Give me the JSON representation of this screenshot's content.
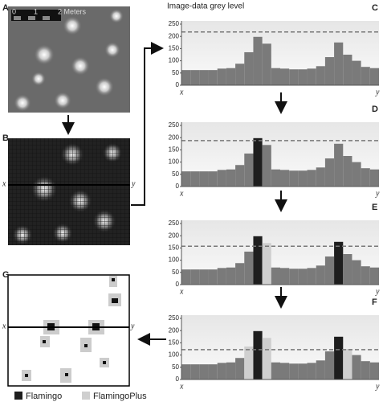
{
  "panels": {
    "a": {
      "label": "A",
      "scale_labels": [
        "0",
        "1",
        "2 Meters"
      ]
    },
    "b": {
      "label": "B",
      "x_label": "x",
      "y_label": "y"
    },
    "g": {
      "label": "G",
      "x_label": "x",
      "y_label": "y"
    }
  },
  "chart_data": [
    {
      "type": "bar",
      "title": "Image-data grey level",
      "panel_label": "C",
      "x_label": "x",
      "y_label": "y",
      "values": [
        62,
        62,
        62,
        62,
        68,
        70,
        88,
        135,
        198,
        170,
        70,
        68,
        65,
        65,
        68,
        78,
        115,
        175,
        125,
        100,
        75,
        70
      ],
      "bar_colors": [
        "#7a7a7a",
        "#7a7a7a",
        "#7a7a7a",
        "#7a7a7a",
        "#7a7a7a",
        "#7a7a7a",
        "#7a7a7a",
        "#7a7a7a",
        "#7a7a7a",
        "#7a7a7a",
        "#7a7a7a",
        "#7a7a7a",
        "#7a7a7a",
        "#7a7a7a",
        "#7a7a7a",
        "#7a7a7a",
        "#7a7a7a",
        "#7a7a7a",
        "#7a7a7a",
        "#7a7a7a",
        "#7a7a7a",
        "#7a7a7a"
      ],
      "threshold": 218,
      "ylim": [
        0,
        250
      ],
      "yticks": [
        0,
        50,
        100,
        150,
        200,
        250
      ]
    },
    {
      "type": "bar",
      "panel_label": "D",
      "x_label": "x",
      "y_label": "y",
      "values": [
        62,
        62,
        62,
        62,
        68,
        70,
        88,
        135,
        198,
        170,
        70,
        68,
        65,
        65,
        68,
        78,
        115,
        175,
        125,
        100,
        75,
        70
      ],
      "bar_colors": [
        "#7a7a7a",
        "#7a7a7a",
        "#7a7a7a",
        "#7a7a7a",
        "#7a7a7a",
        "#7a7a7a",
        "#7a7a7a",
        "#7a7a7a",
        "#1e1e1e",
        "#7a7a7a",
        "#7a7a7a",
        "#7a7a7a",
        "#7a7a7a",
        "#7a7a7a",
        "#7a7a7a",
        "#7a7a7a",
        "#7a7a7a",
        "#7a7a7a",
        "#7a7a7a",
        "#7a7a7a",
        "#7a7a7a",
        "#7a7a7a"
      ],
      "threshold": 188,
      "ylim": [
        0,
        250
      ],
      "yticks": [
        0,
        50,
        100,
        150,
        200,
        250
      ]
    },
    {
      "type": "bar",
      "panel_label": "E",
      "x_label": "x",
      "y_label": "y",
      "values": [
        62,
        62,
        62,
        62,
        68,
        70,
        88,
        135,
        198,
        170,
        70,
        68,
        65,
        65,
        68,
        78,
        115,
        175,
        125,
        100,
        75,
        70
      ],
      "bar_colors": [
        "#7a7a7a",
        "#7a7a7a",
        "#7a7a7a",
        "#7a7a7a",
        "#7a7a7a",
        "#7a7a7a",
        "#7a7a7a",
        "#7a7a7a",
        "#1e1e1e",
        "#cfcfcf",
        "#7a7a7a",
        "#7a7a7a",
        "#7a7a7a",
        "#7a7a7a",
        "#7a7a7a",
        "#7a7a7a",
        "#7a7a7a",
        "#1e1e1e",
        "#7a7a7a",
        "#7a7a7a",
        "#7a7a7a",
        "#7a7a7a"
      ],
      "threshold": 157,
      "ylim": [
        0,
        250
      ],
      "yticks": [
        0,
        50,
        100,
        150,
        200,
        250
      ]
    },
    {
      "type": "bar",
      "panel_label": "F",
      "x_label": "x",
      "y_label": "y",
      "values": [
        62,
        62,
        62,
        62,
        68,
        70,
        88,
        135,
        198,
        170,
        70,
        68,
        65,
        65,
        68,
        78,
        115,
        175,
        125,
        100,
        75,
        70
      ],
      "bar_colors": [
        "#7a7a7a",
        "#7a7a7a",
        "#7a7a7a",
        "#7a7a7a",
        "#7a7a7a",
        "#7a7a7a",
        "#7a7a7a",
        "#cfcfcf",
        "#1e1e1e",
        "#cfcfcf",
        "#7a7a7a",
        "#7a7a7a",
        "#7a7a7a",
        "#7a7a7a",
        "#7a7a7a",
        "#7a7a7a",
        "#7a7a7a",
        "#1e1e1e",
        "#cfcfcf",
        "#7a7a7a",
        "#7a7a7a",
        "#7a7a7a"
      ],
      "threshold": 122,
      "ylim": [
        0,
        250
      ],
      "yticks": [
        0,
        50,
        100,
        150,
        200,
        250
      ]
    }
  ],
  "legend": [
    {
      "name": "Flamingo",
      "color": "#1e1e1e"
    },
    {
      "name": "FlamingoPlus",
      "color": "#cfcfcf"
    }
  ]
}
